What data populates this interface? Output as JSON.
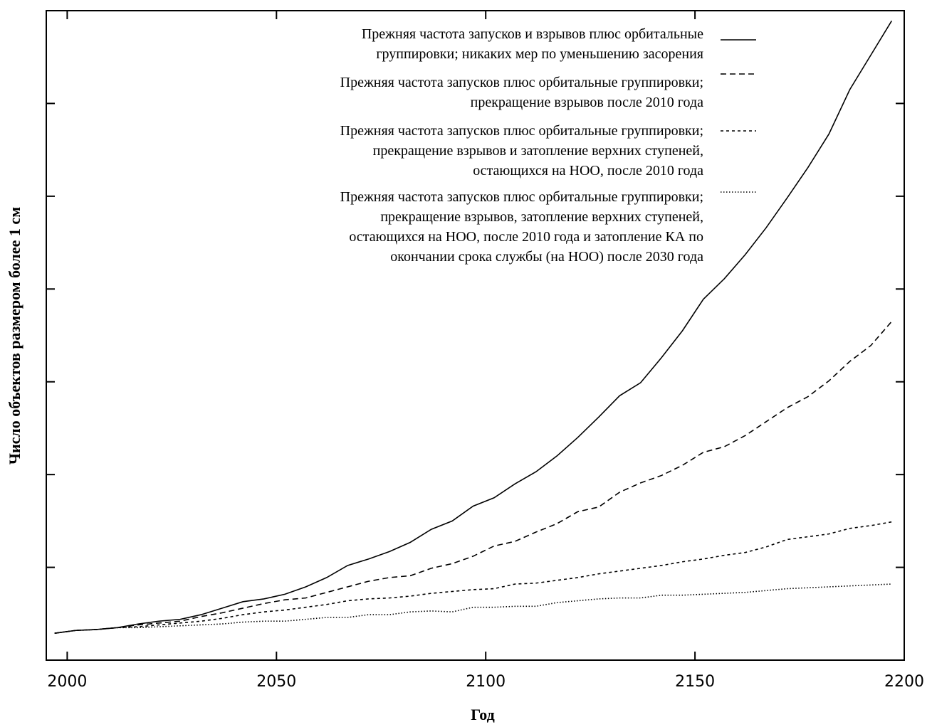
{
  "chart_data": {
    "type": "line",
    "x_label": "Год",
    "y_label": "Число объектов размером более 1 см",
    "x": [
      1997,
      2002,
      2007,
      2012,
      2017,
      2022,
      2027,
      2032,
      2037,
      2042,
      2047,
      2052,
      2057,
      2062,
      2067,
      2072,
      2077,
      2082,
      2087,
      2092,
      2097,
      2102,
      2107,
      2112,
      2117,
      2122,
      2127,
      2132,
      2137,
      2142,
      2147,
      2152,
      2157,
      2162,
      2167,
      2172,
      2177,
      2182,
      2187,
      2192,
      2197
    ],
    "xlim": [
      1995,
      2200
    ],
    "xticks": [
      2000,
      2050,
      2100,
      2150,
      2200
    ],
    "ylim": [
      0,
      7
    ],
    "yticks": [
      1,
      2,
      3,
      4,
      5,
      6
    ],
    "series": [
      {
        "name": "Прежняя частота запусков и взрывов плюс орбитальные\nгруппировки;  никаких мер по уменьшению засорения",
        "color": "#000000",
        "line_style": "solid",
        "values": [
          0.29,
          0.32,
          0.33,
          0.35,
          0.39,
          0.42,
          0.44,
          0.49,
          0.56,
          0.63,
          0.66,
          0.71,
          0.79,
          0.89,
          1.02,
          1.09,
          1.17,
          1.27,
          1.41,
          1.5,
          1.66,
          1.75,
          1.9,
          2.03,
          2.2,
          2.4,
          2.62,
          2.85,
          2.99,
          3.26,
          3.55,
          3.89,
          4.11,
          4.37,
          4.66,
          4.98,
          5.31,
          5.67,
          6.15,
          6.52,
          6.89
        ]
      },
      {
        "name": "Прежняя частота запусков плюс орбитальные группировки;\nпрекращение взрывов после 2010 года",
        "color": "#000000",
        "line_style": "dashed",
        "values": [
          0.29,
          0.32,
          0.33,
          0.35,
          0.38,
          0.4,
          0.42,
          0.47,
          0.51,
          0.56,
          0.61,
          0.65,
          0.67,
          0.73,
          0.79,
          0.85,
          0.89,
          0.91,
          0.99,
          1.04,
          1.12,
          1.23,
          1.28,
          1.38,
          1.47,
          1.6,
          1.65,
          1.81,
          1.91,
          1.99,
          2.1,
          2.24,
          2.3,
          2.42,
          2.57,
          2.72,
          2.84,
          3.01,
          3.22,
          3.39,
          3.65
        ]
      },
      {
        "name": "Прежняя частота запусков плюс орбитальные группировки;\nпрекращение взрывов и затопление верхних ступеней,\nостающихся на НОО, после 2010 года",
        "color": "#000000",
        "line_style": "short-dashed",
        "values": [
          0.29,
          0.32,
          0.33,
          0.35,
          0.36,
          0.38,
          0.4,
          0.42,
          0.45,
          0.49,
          0.52,
          0.54,
          0.57,
          0.6,
          0.64,
          0.66,
          0.67,
          0.69,
          0.72,
          0.74,
          0.76,
          0.77,
          0.82,
          0.83,
          0.86,
          0.89,
          0.93,
          0.96,
          0.99,
          1.02,
          1.06,
          1.09,
          1.13,
          1.16,
          1.22,
          1.3,
          1.33,
          1.36,
          1.42,
          1.45,
          1.49
        ]
      },
      {
        "name": "Прежняя частота запусков плюс орбитальные группировки;\nпрекращение взрывов, затопление верхних ступеней,\nостающихся на НОО, после 2010 года и затопление КА по\nокончании срока службы (на НОО) после 2030 года",
        "color": "#000000",
        "line_style": "dotted",
        "values": [
          0.29,
          0.32,
          0.33,
          0.35,
          0.35,
          0.36,
          0.37,
          0.38,
          0.39,
          0.41,
          0.42,
          0.42,
          0.44,
          0.46,
          0.46,
          0.49,
          0.49,
          0.52,
          0.53,
          0.52,
          0.57,
          0.57,
          0.58,
          0.58,
          0.62,
          0.64,
          0.66,
          0.67,
          0.67,
          0.7,
          0.7,
          0.71,
          0.72,
          0.73,
          0.75,
          0.77,
          0.78,
          0.79,
          0.8,
          0.81,
          0.82
        ]
      }
    ]
  }
}
